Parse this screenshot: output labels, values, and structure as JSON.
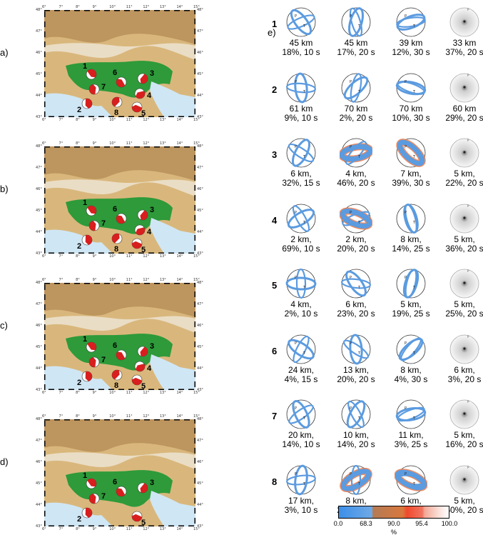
{
  "panels": [
    {
      "label": "a)",
      "events": [
        "1",
        "2",
        "3",
        "4",
        "5",
        "6",
        "7",
        "8"
      ]
    },
    {
      "label": "b)",
      "events": [
        "1",
        "2",
        "3",
        "4",
        "5",
        "6",
        "7",
        "8"
      ]
    },
    {
      "label": "c)",
      "events": [
        "1",
        "2",
        "3",
        "4",
        "5",
        "6",
        "7",
        "8"
      ]
    },
    {
      "label": "d)",
      "events": [
        "1",
        "2",
        "3",
        "5",
        "6",
        "7"
      ]
    }
  ],
  "map_ticks": {
    "lon": [
      "6°",
      "7°",
      "8°",
      "9°",
      "10°",
      "11°",
      "12°",
      "13°",
      "14°",
      "15°"
    ],
    "lat": [
      "48°",
      "47°",
      "46°",
      "45°",
      "44°",
      "43°"
    ]
  },
  "grid_label": "e)",
  "grid": [
    {
      "row": "1",
      "cells": [
        {
          "line1": "45 km",
          "line2": "18%, 10 s",
          "style": "blue"
        },
        {
          "line1": "45 km",
          "line2": "17%, 20 s",
          "style": "blue"
        },
        {
          "line1": "39 km",
          "line2": "12%, 30 s",
          "style": "blue"
        },
        {
          "line1": "33 km",
          "line2": "37%, 20 s",
          "style": "gray"
        }
      ]
    },
    {
      "row": "2",
      "cells": [
        {
          "line1": "61 km",
          "line2": "9%, 10 s",
          "style": "blue"
        },
        {
          "line1": "70 km",
          "line2": "2%, 20 s",
          "style": "blue"
        },
        {
          "line1": "70 km",
          "line2": "10%, 30 s",
          "style": "blue"
        },
        {
          "line1": "60 km",
          "line2": "29%, 20 s",
          "style": "gray"
        }
      ]
    },
    {
      "row": "3",
      "cells": [
        {
          "line1": "6 km,",
          "line2": "32%, 15 s",
          "style": "blue"
        },
        {
          "line1": "4 km,",
          "line2": "46%,  20 s",
          "style": "orange"
        },
        {
          "line1": "7 km,",
          "line2": "39%, 30 s",
          "style": "orange"
        },
        {
          "line1": "5 km,",
          "line2": "22%, 20 s",
          "style": "gray"
        }
      ]
    },
    {
      "row": "4",
      "cells": [
        {
          "line1": "2 km,",
          "line2": "69%, 10 s",
          "style": "blue"
        },
        {
          "line1": "2 km,",
          "line2": "20%,  20 s",
          "style": "orange"
        },
        {
          "line1": "8 km,",
          "line2": "14%, 25 s",
          "style": "blue"
        },
        {
          "line1": "5 km,",
          "line2": "36%, 20 s",
          "style": "gray"
        }
      ]
    },
    {
      "row": "5",
      "cells": [
        {
          "line1": "4 km,",
          "line2": "2%, 10 s",
          "style": "blue"
        },
        {
          "line1": "6 km,",
          "line2": "23%,  20 s",
          "style": "blue"
        },
        {
          "line1": "5 km,",
          "line2": "19%, 25 s",
          "style": "blue"
        },
        {
          "line1": "5 km,",
          "line2": "25%, 20 s",
          "style": "gray"
        }
      ]
    },
    {
      "row": "6",
      "cells": [
        {
          "line1": "24 km,",
          "line2": "4%, 15 s",
          "style": "blue"
        },
        {
          "line1": "13 km,",
          "line2": "20%,  20 s",
          "style": "blue"
        },
        {
          "line1": "8 km,",
          "line2": "4%, 30 s",
          "style": "blue"
        },
        {
          "line1": "6 km,",
          "line2": "3%, 20 s",
          "style": "gray"
        }
      ]
    },
    {
      "row": "7",
      "cells": [
        {
          "line1": "20 km,",
          "line2": "14%, 10 s",
          "style": "blue"
        },
        {
          "line1": "10 km,",
          "line2": "14%,  20 s",
          "style": "blue"
        },
        {
          "line1": "11 km,",
          "line2": "3%, 25 s",
          "style": "blue"
        },
        {
          "line1": "5 km,",
          "line2": "16%, 20 s",
          "style": "gray"
        }
      ]
    },
    {
      "row": "8",
      "cells": [
        {
          "line1": "17 km,",
          "line2": "3%, 10 s",
          "style": "blue"
        },
        {
          "line1": "8 km,",
          "line2": "20%,  20 s",
          "style": "orange"
        },
        {
          "line1": "6 km,",
          "line2": "41%, 25 s",
          "style": "orange"
        },
        {
          "line1": "5 km,",
          "line2": "50%, 20 s",
          "style": "gray"
        }
      ]
    }
  ],
  "colorbar": {
    "ticks": [
      "0.0",
      "68.3",
      "90.0",
      "95.4",
      "100.0"
    ],
    "tick_values": [
      0.0,
      68.3,
      90.0,
      95.4,
      100.0
    ],
    "unit": "%"
  },
  "colors": {
    "blue": "#5b9be0",
    "orange": "#e8794a",
    "beach_red": "#d81e1e",
    "land_green": "#2e9a3a",
    "sea": "#cfe6f4"
  }
}
